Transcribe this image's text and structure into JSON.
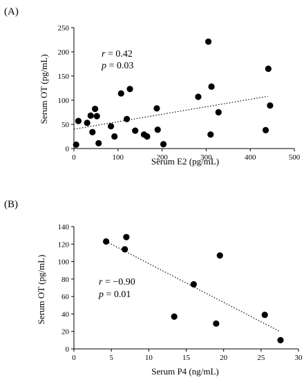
{
  "chart_data": [
    {
      "type": "scatter",
      "panel_label": "(A)",
      "xlabel": "Serum E2 (pg/mL)",
      "ylabel": "Serum OT (pg/mL)",
      "xlim": [
        0,
        500
      ],
      "ylim": [
        0,
        250
      ],
      "xticks": [
        0,
        100,
        200,
        300,
        400,
        500
      ],
      "yticks": [
        0,
        50,
        100,
        150,
        200,
        250
      ],
      "grid": false,
      "stats": {
        "r_sym": "r",
        "r_val": " = 0.42",
        "p_sym": "p",
        "p_val": " = 0.03"
      },
      "trendline": {
        "x": [
          0,
          440
        ],
        "y": [
          40,
          108
        ]
      },
      "points": [
        {
          "x": 5,
          "y": 8
        },
        {
          "x": 10,
          "y": 57
        },
        {
          "x": 30,
          "y": 53
        },
        {
          "x": 38,
          "y": 68
        },
        {
          "x": 42,
          "y": 34
        },
        {
          "x": 48,
          "y": 82
        },
        {
          "x": 52,
          "y": 67
        },
        {
          "x": 56,
          "y": 11
        },
        {
          "x": 84,
          "y": 46
        },
        {
          "x": 92,
          "y": 25
        },
        {
          "x": 107,
          "y": 114
        },
        {
          "x": 120,
          "y": 61
        },
        {
          "x": 127,
          "y": 123
        },
        {
          "x": 139,
          "y": 37
        },
        {
          "x": 159,
          "y": 29
        },
        {
          "x": 166,
          "y": 25
        },
        {
          "x": 188,
          "y": 83
        },
        {
          "x": 190,
          "y": 39
        },
        {
          "x": 203,
          "y": 9
        },
        {
          "x": 282,
          "y": 107
        },
        {
          "x": 305,
          "y": 221
        },
        {
          "x": 310,
          "y": 29
        },
        {
          "x": 312,
          "y": 128
        },
        {
          "x": 328,
          "y": 75
        },
        {
          "x": 435,
          "y": 38
        },
        {
          "x": 441,
          "y": 165
        },
        {
          "x": 445,
          "y": 89
        }
      ]
    },
    {
      "type": "scatter",
      "panel_label": "(B)",
      "xlabel": "Serum P4 (ng/mL)",
      "ylabel": "Serum OT (pg/mL)",
      "xlim": [
        0,
        30
      ],
      "ylim": [
        0,
        140
      ],
      "xticks": [
        0,
        5,
        10,
        15,
        20,
        25,
        30
      ],
      "yticks": [
        0,
        20,
        40,
        60,
        80,
        100,
        120,
        140
      ],
      "grid": false,
      "stats": {
        "r_sym": "r",
        "r_val": " = −0.90",
        "p_sym": "p",
        "p_val": " = 0.01"
      },
      "trendline": {
        "x": [
          4.3,
          27.5
        ],
        "y": [
          123,
          20
        ]
      },
      "points": [
        {
          "x": 4.3,
          "y": 123
        },
        {
          "x": 6.8,
          "y": 114
        },
        {
          "x": 7.0,
          "y": 128
        },
        {
          "x": 13.4,
          "y": 37
        },
        {
          "x": 16.0,
          "y": 74
        },
        {
          "x": 19.0,
          "y": 29
        },
        {
          "x": 19.5,
          "y": 107
        },
        {
          "x": 25.5,
          "y": 39
        },
        {
          "x": 27.6,
          "y": 10
        }
      ]
    }
  ]
}
